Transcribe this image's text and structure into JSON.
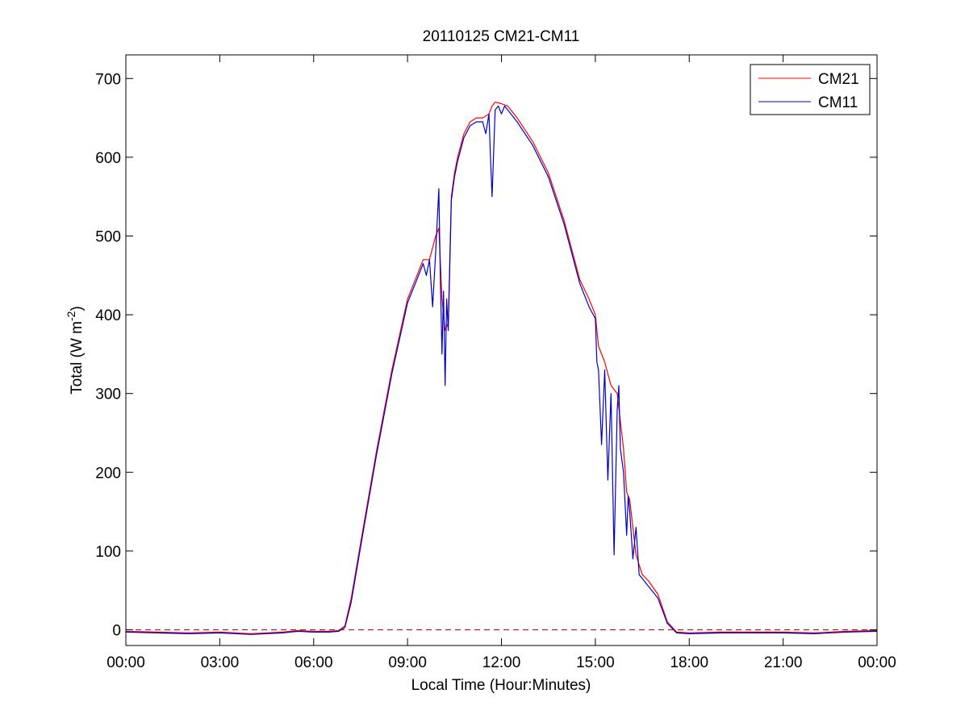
{
  "chart_data": {
    "type": "line",
    "title": "20110125 CM21-CM11",
    "xlabel": "Local Time (Hour:Minutes)",
    "ylabel_prefix": "Total (W m",
    "ylabel_superscript": "-2",
    "ylabel_suffix": ")",
    "xlim": [
      0,
      24
    ],
    "ylim": [
      -20,
      730
    ],
    "x_ticks": [
      0,
      3,
      6,
      9,
      12,
      15,
      18,
      21,
      24
    ],
    "x_tick_labels": [
      "00:00",
      "03:00",
      "06:00",
      "09:00",
      "12:00",
      "15:00",
      "18:00",
      "21:00",
      "00:00"
    ],
    "y_ticks": [
      0,
      100,
      200,
      300,
      400,
      500,
      600,
      700
    ],
    "y_tick_labels": [
      "0",
      "100",
      "200",
      "300",
      "400",
      "500",
      "600",
      "700"
    ],
    "grid": false,
    "legend_position": "top-right",
    "reference_line": {
      "y": 0,
      "color": "#cc0000",
      "style": "dashed"
    },
    "series": [
      {
        "name": "CM21",
        "color": "#ff0000",
        "x": [
          0,
          1,
          2,
          3,
          4,
          5,
          5.5,
          6,
          6.5,
          6.8,
          7,
          7.2,
          7.5,
          8,
          8.5,
          9,
          9.3,
          9.5,
          9.7,
          9.9,
          10,
          10.1,
          10.2,
          10.3,
          10.4,
          10.5,
          10.6,
          10.8,
          11,
          11.2,
          11.4,
          11.6,
          11.7,
          11.8,
          12,
          12.2,
          12.5,
          13,
          13.5,
          14,
          14.5,
          14.8,
          15,
          15.1,
          15.3,
          15.5,
          15.7,
          15.9,
          16,
          16.1,
          16.3,
          16.5,
          16.7,
          17,
          17.3,
          17.6,
          18,
          19,
          20,
          21,
          22,
          23,
          24
        ],
        "y": [
          -2,
          -3,
          -4,
          -3,
          -5,
          -3,
          -1,
          -2,
          -2,
          -1,
          5,
          40,
          110,
          225,
          330,
          420,
          450,
          470,
          470,
          500,
          510,
          420,
          380,
          390,
          550,
          580,
          600,
          630,
          645,
          650,
          650,
          655,
          665,
          670,
          668,
          665,
          650,
          620,
          580,
          520,
          445,
          420,
          400,
          360,
          340,
          310,
          300,
          230,
          175,
          165,
          95,
          70,
          62,
          45,
          10,
          -3,
          -4,
          -3,
          -3,
          -3,
          -4,
          -2,
          -1
        ]
      },
      {
        "name": "CM11",
        "color": "#0000cc",
        "x": [
          0,
          1,
          2,
          3,
          4,
          5,
          5.5,
          6,
          6.5,
          6.8,
          7,
          7.2,
          7.5,
          8,
          8.5,
          9,
          9.3,
          9.5,
          9.6,
          9.7,
          9.8,
          9.9,
          10,
          10.05,
          10.1,
          10.15,
          10.2,
          10.25,
          10.3,
          10.4,
          10.5,
          10.6,
          10.8,
          11,
          11.2,
          11.4,
          11.5,
          11.6,
          11.65,
          11.7,
          11.8,
          11.9,
          12,
          12.1,
          12.2,
          12.5,
          13,
          13.5,
          14,
          14.5,
          14.8,
          15,
          15.05,
          15.1,
          15.2,
          15.3,
          15.4,
          15.5,
          15.6,
          15.7,
          15.75,
          15.8,
          15.9,
          16,
          16.05,
          16.1,
          16.2,
          16.3,
          16.4,
          16.5,
          16.7,
          17,
          17.3,
          17.6,
          18,
          19,
          20,
          21,
          22,
          23,
          24
        ],
        "y": [
          -3,
          -4,
          -5,
          -4,
          -6,
          -4,
          -2,
          -3,
          -3,
          -2,
          3,
          35,
          105,
          220,
          325,
          415,
          445,
          465,
          450,
          470,
          410,
          480,
          560,
          440,
          350,
          430,
          310,
          420,
          380,
          545,
          575,
          595,
          625,
          640,
          645,
          645,
          630,
          655,
          600,
          550,
          660,
          665,
          655,
          665,
          660,
          645,
          615,
          575,
          515,
          440,
          410,
          395,
          340,
          330,
          235,
          330,
          190,
          300,
          95,
          280,
          310,
          230,
          200,
          120,
          170,
          150,
          90,
          130,
          70,
          65,
          55,
          40,
          8,
          -4,
          -5,
          -4,
          -4,
          -4,
          -5,
          -3,
          -2
        ]
      }
    ]
  }
}
